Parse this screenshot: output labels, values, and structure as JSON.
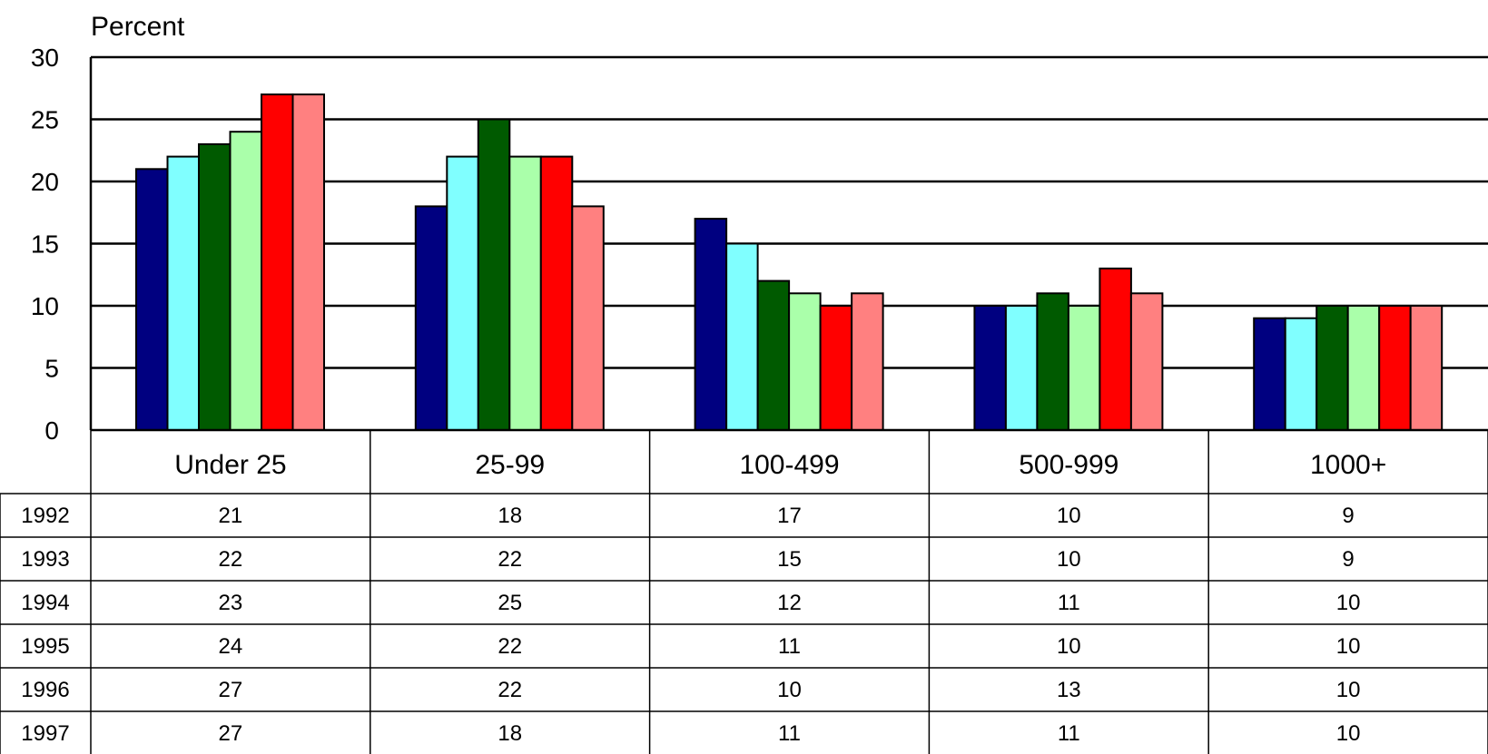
{
  "chart_data": {
    "type": "bar",
    "ylabel": "Percent",
    "ylim": [
      0,
      30
    ],
    "yticks": [
      0,
      5,
      10,
      15,
      20,
      25,
      30
    ],
    "grid": true,
    "legend": "data table below chart",
    "categories": [
      "Under 25",
      "25-99",
      "100-499",
      "500-999",
      "1000+"
    ],
    "series": [
      {
        "name": "1992",
        "color": "#000080",
        "values": [
          21,
          18,
          17,
          10,
          9
        ]
      },
      {
        "name": "1993",
        "color": "#80ffff",
        "values": [
          22,
          22,
          15,
          10,
          9
        ]
      },
      {
        "name": "1994",
        "color": "#005a00",
        "values": [
          23,
          25,
          12,
          11,
          10
        ]
      },
      {
        "name": "1995",
        "color": "#aaffaa",
        "values": [
          24,
          22,
          11,
          10,
          10
        ]
      },
      {
        "name": "1996",
        "color": "#ff0000",
        "values": [
          27,
          22,
          10,
          13,
          10
        ]
      },
      {
        "name": "1997",
        "color": "#ff8080",
        "values": [
          27,
          18,
          11,
          11,
          10
        ]
      }
    ]
  }
}
